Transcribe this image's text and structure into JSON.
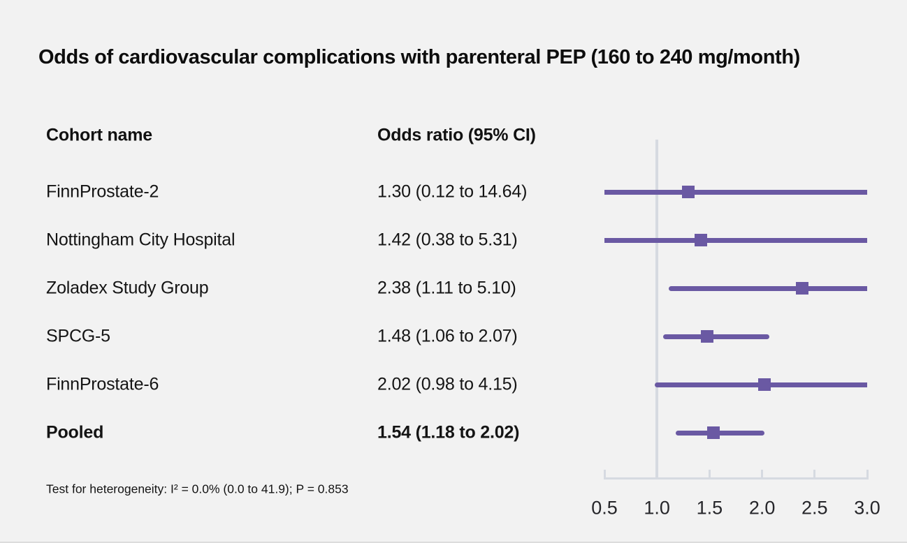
{
  "title": "Odds of cardiovascular complications with parenteral PEP (160 to 240 mg/month)",
  "table": {
    "cohort_header": "Cohort name",
    "or_header": "Odds ratio (95% CI)"
  },
  "footnote": "Test for heterogeneity: I² = 0.0% (0.0 to 41.9); P = 0.853",
  "colors": {
    "background": "#f2f2f2",
    "marker_purple": "#6a59a3",
    "axis_gray": "#d6dae1",
    "tick_label": "#26262a"
  },
  "chart_data": {
    "type": "forest",
    "xlim": [
      0.5,
      3.0
    ],
    "x_ticks": [
      0.5,
      1.0,
      1.5,
      2.0,
      2.5,
      3.0
    ],
    "reference_line_x": 1.0,
    "grid": false,
    "legend": "none",
    "rows": [
      {
        "label": "FinnProstate-2",
        "display": "1.30 (0.12 to 14.64)",
        "or": 1.3,
        "ci_low": 0.12,
        "ci_high": 14.64,
        "bold": false
      },
      {
        "label": "Nottingham City Hospital",
        "display": "1.42 (0.38 to 5.31)",
        "or": 1.42,
        "ci_low": 0.38,
        "ci_high": 5.31,
        "bold": false
      },
      {
        "label": "Zoladex Study Group",
        "display": "2.38 (1.11 to 5.10)",
        "or": 2.38,
        "ci_low": 1.11,
        "ci_high": 5.1,
        "bold": false
      },
      {
        "label": "SPCG-5",
        "display": "1.48 (1.06 to 2.07)",
        "or": 1.48,
        "ci_low": 1.06,
        "ci_high": 2.07,
        "bold": false
      },
      {
        "label": "FinnProstate-6",
        "display": "2.02 (0.98 to 4.15)",
        "or": 2.02,
        "ci_low": 0.98,
        "ci_high": 4.15,
        "bold": false
      },
      {
        "label": "Pooled",
        "display": "1.54 (1.18 to 2.02)",
        "or": 1.54,
        "ci_low": 1.18,
        "ci_high": 2.02,
        "bold": true
      }
    ]
  }
}
